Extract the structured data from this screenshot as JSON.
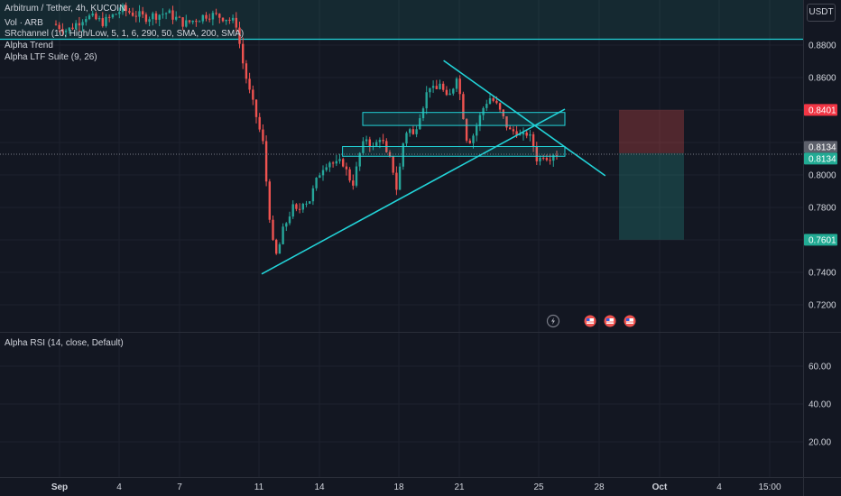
{
  "header": {
    "symbol_line": "Arbitrum / Tether, 4h, KUCOIN",
    "volume_line": "Vol · ARB",
    "indicators": [
      "SRchannel (10, High/Low, 5, 1, 6, 290, 50, SMA, 200, SMA)",
      "Alpha Trend",
      "Alpha LTF Suite (9, 26)"
    ]
  },
  "currency_button": "USDT",
  "rsi_label": "Alpha RSI (14, close, Default)",
  "colors": {
    "background": "#131722",
    "bull": "#26a69a",
    "bear": "#ef5350",
    "trendline": "#22d3d8",
    "grid": "#1e222d"
  },
  "chart_data": {
    "type": "candlestick",
    "price_axis": {
      "ticks": [
        "0.8800",
        "0.8600",
        "0.8401",
        "0.8134",
        "0.8000",
        "0.7800",
        "0.7601",
        "0.7400",
        "0.7200"
      ],
      "ylim": [
        0.71,
        0.905
      ]
    },
    "rsi_axis": {
      "ticks": [
        "60.00",
        "40.00",
        "20.00"
      ]
    },
    "x_ticks": [
      "Sep",
      "4",
      "7",
      "11",
      "14",
      "18",
      "21",
      "25",
      "28",
      "Oct",
      "4",
      "15:00"
    ],
    "price_labels": [
      {
        "value": "0.8401",
        "kind": "stop"
      },
      {
        "value": "0.8134",
        "kind": "last-gray"
      },
      {
        "value": "0.8134",
        "kind": "last"
      },
      {
        "value": "0.7601",
        "kind": "target"
      }
    ],
    "trendlines": [
      {
        "from": [
          "Sep 11",
          0.739
        ],
        "to": [
          "Sep 26",
          0.8405
        ]
      },
      {
        "from": [
          "Sep 20",
          0.8705
        ],
        "to": [
          "Sep 28",
          0.7995
        ]
      }
    ],
    "zones": [
      {
        "from": "Sep 16",
        "to": "Sep 26",
        "low": 0.8305,
        "high": 0.8385
      },
      {
        "from": "Sep 15",
        "to": "Sep 26",
        "low": 0.8115,
        "high": 0.8175
      }
    ],
    "position": {
      "entry": 0.8134,
      "stop": 0.8401,
      "target": 0.7601
    }
  },
  "markers": [
    "lightning-icon",
    "flag-icon",
    "flag-icon",
    "flag-icon"
  ]
}
